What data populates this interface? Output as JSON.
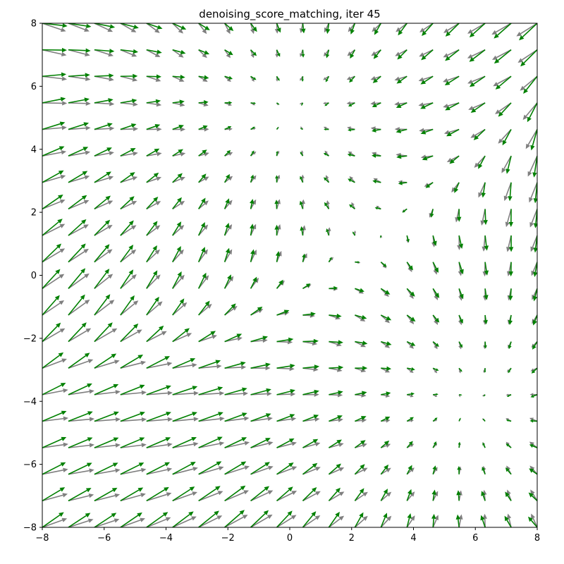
{
  "chart_data": {
    "type": "quiver",
    "title": "denoising_score_matching, iter 45",
    "xlabel": "",
    "ylabel": "",
    "xlim": [
      -8,
      8
    ],
    "ylim": [
      -8,
      8
    ],
    "xticks": [
      -8,
      -6,
      -4,
      -2,
      0,
      2,
      4,
      6,
      8
    ],
    "yticks": [
      -8,
      -6,
      -4,
      -2,
      0,
      2,
      4,
      6,
      8
    ],
    "xtick_labels": [
      "−8",
      "−6",
      "−4",
      "−2",
      "0",
      "2",
      "4",
      "6",
      "8"
    ],
    "ytick_labels": [
      "−8",
      "−6",
      "−4",
      "−2",
      "0",
      "2",
      "4",
      "6",
      "8"
    ],
    "grid": false,
    "series": [
      {
        "color": "#7f7f7f",
        "field": "gray",
        "grid": {
          "n": 20,
          "min": -8,
          "max": 8
        }
      },
      {
        "color": "#008000",
        "field": "green",
        "grid": {
          "n": 20,
          "min": -8,
          "max": 8
        }
      }
    ]
  }
}
